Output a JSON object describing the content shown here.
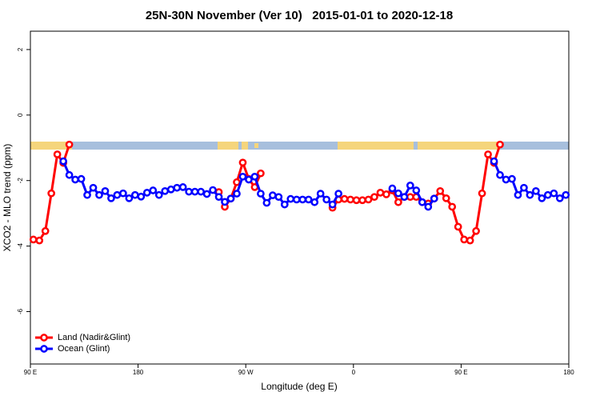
{
  "chart_data": {
    "type": "line",
    "title": "25N-30N November (Ver 10)   2015-01-01 to 2020-12-18",
    "xlabel": "Longitude (deg E)",
    "ylabel": "XCO2 - MLO trend (ppm)",
    "x": [
      92.5,
      97.5,
      102.5,
      107.5,
      112.5,
      117.5,
      122.5,
      127.5,
      132.5,
      137.5,
      142.5,
      147.5,
      152.5,
      157.5,
      162.5,
      167.5,
      172.5,
      177.5,
      182.5,
      187.5,
      192.5,
      197.5,
      202.5,
      207.5,
      212.5,
      217.5,
      222.5,
      227.5,
      232.5,
      237.5,
      242.5,
      247.5,
      252.5,
      257.5,
      262.5,
      267.5,
      272.5,
      277.5,
      282.5,
      287.5,
      292.5,
      297.5,
      302.5,
      307.5,
      312.5,
      317.5,
      322.5,
      327.5,
      332.5,
      337.5,
      342.5,
      347.5,
      352.5,
      357.5,
      362.5,
      367.5,
      372.5,
      377.5,
      382.5,
      387.5,
      392.5,
      397.5,
      402.5,
      407.5,
      412.5,
      417.5,
      422.5,
      427.5,
      432.5,
      437.5,
      442.5,
      447.5,
      452.5,
      457.5,
      462.5,
      467.5,
      472.5,
      477.5,
      482.5,
      487.5,
      492.5,
      497.5,
      502.5,
      507.5,
      512.5,
      517.5,
      522.5,
      527.5,
      532.5,
      537.5
    ],
    "series": [
      {
        "name": "Land (Nadir&Glint)",
        "color": "#ff0000",
        "values": [
          -3.8,
          -3.83,
          -3.54,
          -2.39,
          -1.2,
          -1.46,
          -0.9,
          null,
          null,
          null,
          null,
          null,
          null,
          null,
          null,
          null,
          null,
          null,
          null,
          null,
          null,
          null,
          null,
          null,
          null,
          null,
          null,
          null,
          null,
          null,
          null,
          -2.35,
          -2.8,
          -2.55,
          -2.05,
          -1.45,
          -1.95,
          -2.2,
          -1.78,
          null,
          null,
          null,
          null,
          null,
          null,
          null,
          null,
          null,
          null,
          null,
          -2.83,
          -2.58,
          -2.56,
          -2.58,
          -2.6,
          -2.6,
          -2.58,
          -2.5,
          -2.37,
          -2.42,
          -2.3,
          -2.66,
          -2.5,
          -2.5,
          -2.5,
          -2.66,
          -2.7,
          -2.55,
          -2.32,
          -2.54,
          -2.8,
          -3.41,
          -3.8,
          -3.83,
          -3.54,
          -2.39,
          -1.2,
          -1.46,
          -0.9,
          null,
          null,
          null,
          null,
          null,
          null,
          null,
          null,
          null,
          null,
          null
        ]
      },
      {
        "name": "Ocean (Glint)",
        "color": "#0000ff",
        "values": [
          null,
          null,
          null,
          null,
          null,
          -1.41,
          -1.83,
          -1.97,
          -1.95,
          -2.44,
          -2.22,
          -2.44,
          -2.32,
          -2.54,
          -2.44,
          -2.39,
          -2.54,
          -2.44,
          -2.49,
          -2.37,
          -2.3,
          -2.44,
          -2.32,
          -2.27,
          -2.22,
          -2.2,
          -2.34,
          -2.34,
          -2.34,
          -2.41,
          -2.29,
          -2.5,
          -2.65,
          -2.55,
          -2.4,
          -1.88,
          -1.97,
          -1.88,
          -2.4,
          -2.68,
          -2.45,
          -2.5,
          -2.73,
          -2.56,
          -2.58,
          -2.58,
          -2.58,
          -2.66,
          -2.4,
          -2.58,
          -2.73,
          -2.4,
          null,
          null,
          null,
          null,
          null,
          null,
          null,
          null,
          -2.24,
          -2.39,
          -2.5,
          -2.15,
          -2.3,
          -2.66,
          -2.8,
          -2.55,
          null,
          null,
          null,
          null,
          null,
          null,
          null,
          null,
          null,
          -1.41,
          -1.83,
          -1.97,
          -1.95,
          -2.44,
          -2.22,
          -2.44,
          -2.32,
          -2.54,
          -2.44,
          -2.39,
          -2.54,
          -2.44
        ]
      }
    ],
    "xlim": [
      90,
      540
    ],
    "ylim": [
      -7.6,
      2.56
    ],
    "xticks": [
      {
        "value": 90,
        "label": "90 E"
      },
      180,
      {
        "value": 270,
        "label": "90 W"
      },
      {
        "value": 360,
        "label": "0"
      },
      {
        "value": 450,
        "label": "90 E"
      },
      {
        "value": 540,
        "label": "180"
      }
    ],
    "yticks": [
      2,
      0,
      -2,
      -4,
      -6
    ],
    "legend": "bottom-left"
  }
}
